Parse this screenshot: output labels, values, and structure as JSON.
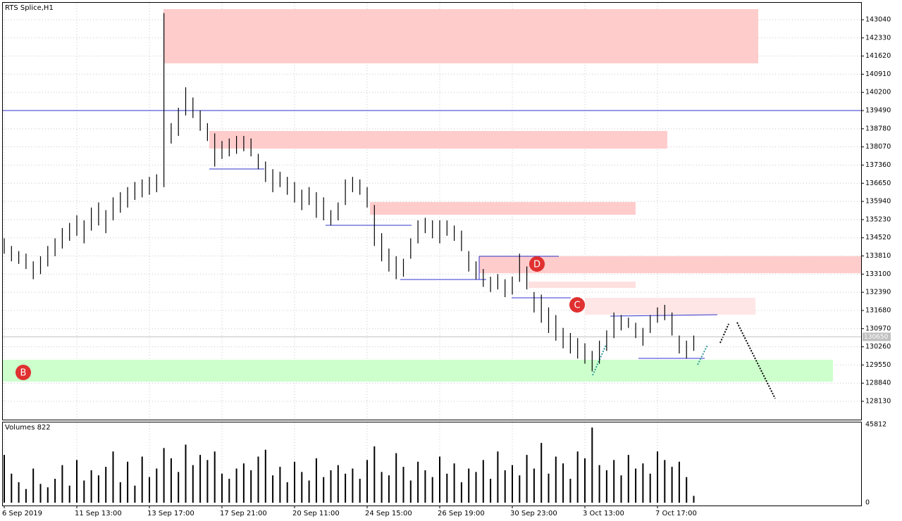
{
  "chart_data": {
    "type": "ohlc",
    "title": "RTS Splice,H1",
    "categories": [
      "6 Sep 2019",
      null,
      null,
      null,
      null,
      null,
      null,
      null,
      null,
      null,
      "11 Sep 13:00",
      null,
      null,
      null,
      null,
      null,
      null,
      null,
      null,
      null,
      "13 Sep 17:00",
      null,
      null,
      null,
      null,
      null,
      null,
      null,
      null,
      null,
      "17 Sep 21:00",
      null,
      null,
      null,
      null,
      null,
      null,
      null,
      null,
      null,
      "20 Sep 11:00",
      null,
      null,
      null,
      null,
      null,
      null,
      null,
      null,
      null,
      "24 Sep 15:00",
      null,
      null,
      null,
      null,
      null,
      null,
      null,
      null,
      null,
      "26 Sep 19:00",
      null,
      null,
      null,
      null,
      null,
      null,
      null,
      null,
      null,
      "30 Sep 23:00",
      null,
      null,
      null,
      null,
      null,
      null,
      null,
      null,
      null,
      "3 Oct 13:00",
      null,
      null,
      null,
      null,
      null,
      null,
      null,
      null,
      null,
      "7 Oct 17:00",
      null,
      null,
      null,
      null,
      null
    ],
    "low": [
      133900,
      133600,
      133500,
      133300,
      132900,
      133100,
      133400,
      133800,
      134100,
      134400,
      134600,
      134300,
      134800,
      135000,
      134700,
      135200,
      135500,
      135700,
      136000,
      136100,
      136200,
      136300,
      136500,
      138200,
      138500,
      139300,
      139200,
      138700,
      138300,
      137300,
      137600,
      137700,
      137800,
      137900,
      137700,
      137200,
      136700,
      136300,
      136500,
      136200,
      135900,
      135600,
      135800,
      135300,
      135200,
      135000,
      135200,
      135800,
      136300,
      136200,
      135700,
      134200,
      133600,
      133200,
      132900,
      133000,
      133700,
      134300,
      134700,
      134500,
      134300,
      134600,
      134400,
      134000,
      133200,
      132900,
      132600,
      132400,
      132500,
      132200,
      132300,
      132800,
      132500,
      131600,
      131200,
      130800,
      130500,
      130200,
      130000,
      129800,
      129600,
      129300,
      129600,
      130100,
      130600,
      130900,
      131000,
      130600,
      130300,
      130800,
      131200,
      131300,
      130700,
      130000,
      129800,
      130100
    ],
    "high": [
      134500,
      134200,
      134000,
      133900,
      133600,
      133800,
      134200,
      134500,
      134900,
      135100,
      135400,
      135200,
      135700,
      135900,
      135600,
      136100,
      136300,
      136500,
      136700,
      136800,
      136900,
      137000,
      143300,
      139000,
      139600,
      140400,
      140000,
      139500,
      139000,
      138600,
      138300,
      138400,
      138500,
      138500,
      138400,
      137800,
      137500,
      137200,
      137100,
      136900,
      136700,
      136400,
      136500,
      136300,
      136100,
      135600,
      135900,
      136800,
      136900,
      136800,
      136500,
      135800,
      134700,
      134100,
      133800,
      133700,
      134500,
      135200,
      135300,
      135200,
      135200,
      135200,
      135000,
      134800,
      134000,
      133600,
      133300,
      133000,
      133100,
      132900,
      133000,
      133900,
      133400,
      132400,
      132300,
      131800,
      131500,
      131000,
      130800,
      130600,
      130400,
      130100,
      130500,
      130900,
      131600,
      131500,
      131400,
      131200,
      131000,
      131500,
      131800,
      131900,
      131600,
      130700,
      130500,
      130700
    ],
    "ylim": [
      127415,
      143700
    ],
    "yticks": [
      143040,
      142330,
      141620,
      140910,
      140200,
      139490,
      138780,
      138070,
      137360,
      136650,
      135940,
      135230,
      134520,
      133810,
      133100,
      132390,
      131680,
      130970,
      130260,
      129550,
      128840,
      128130
    ],
    "level": 139490,
    "current_price": 130650,
    "volume_title": "Volumes 822",
    "volumes": [
      28000,
      17000,
      12000,
      8000,
      20000,
      11000,
      9000,
      14000,
      22000,
      10000,
      25000,
      13000,
      19000,
      16000,
      21000,
      30000,
      12000,
      24000,
      10000,
      27000,
      15000,
      20000,
      32000,
      26000,
      18000,
      34000,
      22000,
      28000,
      25000,
      30000,
      17000,
      14000,
      20000,
      23000,
      19000,
      27000,
      31000,
      16000,
      21000,
      12000,
      24000,
      18000,
      13000,
      26000,
      15000,
      19000,
      22000,
      17000,
      20000,
      14000,
      25000,
      33000,
      18000,
      16000,
      29000,
      21000,
      13000,
      24000,
      19000,
      15000,
      27000,
      17000,
      23000,
      12000,
      20000,
      18000,
      25000,
      14000,
      30000,
      19000,
      22000,
      16000,
      28000,
      20000,
      35000,
      17000,
      27000,
      23000,
      14000,
      30000,
      26000,
      44000,
      22000,
      19000,
      25000,
      16000,
      28000,
      20000,
      23000,
      17000,
      30000,
      25000,
      21000,
      24000,
      15000,
      4000
    ],
    "vlim": [
      0,
      47000
    ],
    "vticks": [
      45812,
      0
    ],
    "annotations": [
      "B",
      "C",
      "D"
    ]
  }
}
